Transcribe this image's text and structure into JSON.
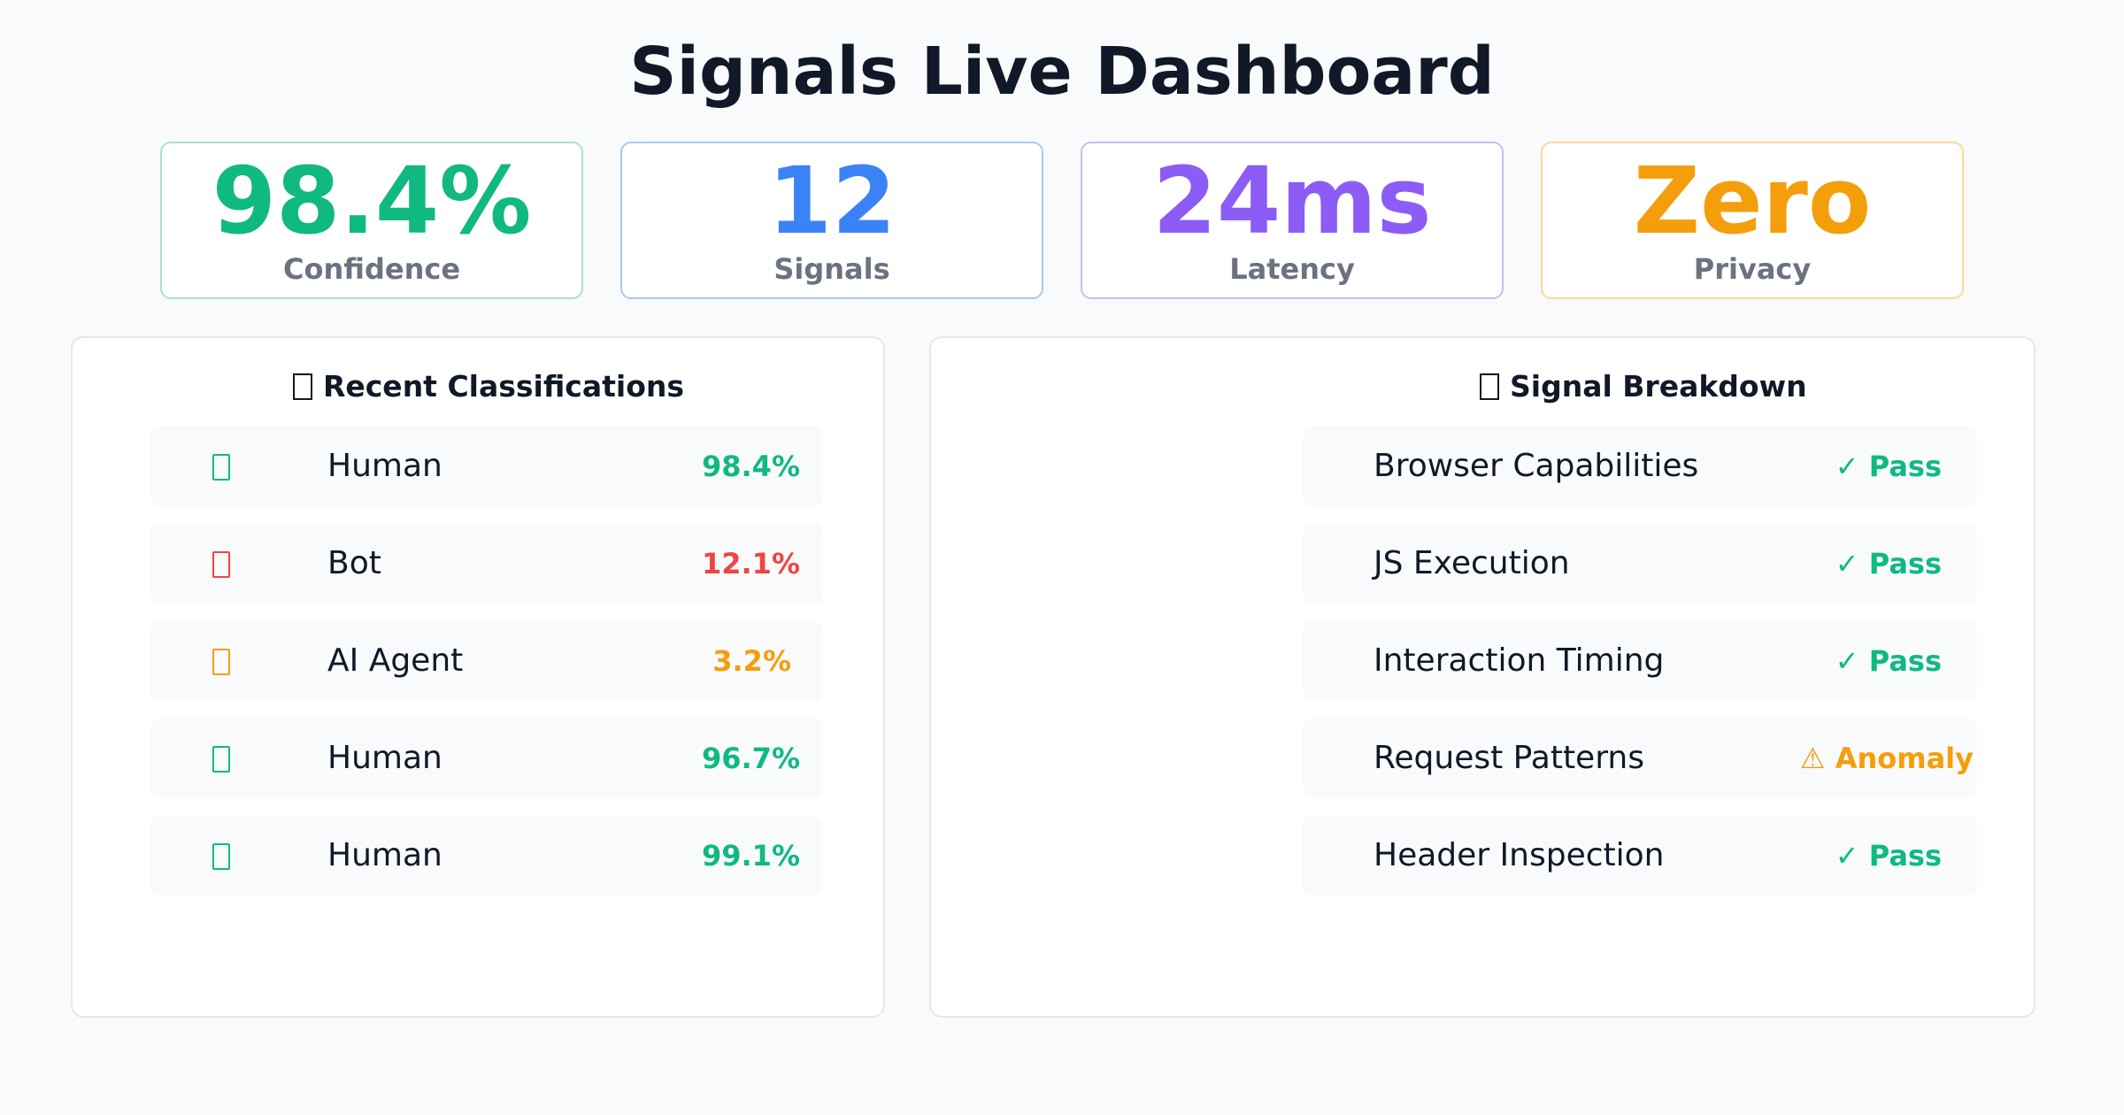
{
  "title": "Signals Live Dashboard",
  "colors": {
    "green": "#10b981",
    "blue": "#3b82f6",
    "purple": "#8b5cf6",
    "amber": "#f59e0b",
    "red": "#ef4444"
  },
  "stats": [
    {
      "value": "98.4%",
      "label": "Confidence",
      "color": "#10b981",
      "border": "#a7e3cb"
    },
    {
      "value": "12",
      "label": "Signals",
      "color": "#3b82f6",
      "border": "#a9c8f3"
    },
    {
      "value": "24ms",
      "label": "Latency",
      "color": "#8b5cf6",
      "border": "#cdbcf5"
    },
    {
      "value": "Zero",
      "label": "Privacy",
      "color": "#f59e0b",
      "border": "#fbd89a"
    }
  ],
  "classifications": {
    "title": "Recent Classifications",
    "icon": "clipboard-icon",
    "items": [
      {
        "label": "Human",
        "value": "98.4%",
        "color": "#10b981",
        "icon": "human-icon"
      },
      {
        "label": "Bot",
        "value": "12.1%",
        "color": "#ef4444",
        "icon": "bot-icon"
      },
      {
        "label": "AI Agent",
        "value": "3.2%",
        "color": "#f59e0b",
        "icon": "ai-agent-icon"
      },
      {
        "label": "Human",
        "value": "96.7%",
        "color": "#10b981",
        "icon": "human-icon"
      },
      {
        "label": "Human",
        "value": "99.1%",
        "color": "#10b981",
        "icon": "human-icon"
      }
    ]
  },
  "breakdown": {
    "title": "Signal Breakdown",
    "icon": "chart-icon",
    "items": [
      {
        "label": "Browser Capabilities",
        "status": "✓ Pass",
        "color": "#10b981"
      },
      {
        "label": "JS Execution",
        "status": "✓ Pass",
        "color": "#10b981"
      },
      {
        "label": "Interaction Timing",
        "status": "✓ Pass",
        "color": "#10b981"
      },
      {
        "label": "Request Patterns",
        "status": "⚠ Anomaly",
        "color": "#f59e0b"
      },
      {
        "label": "Header Inspection",
        "status": "✓ Pass",
        "color": "#10b981"
      }
    ]
  }
}
